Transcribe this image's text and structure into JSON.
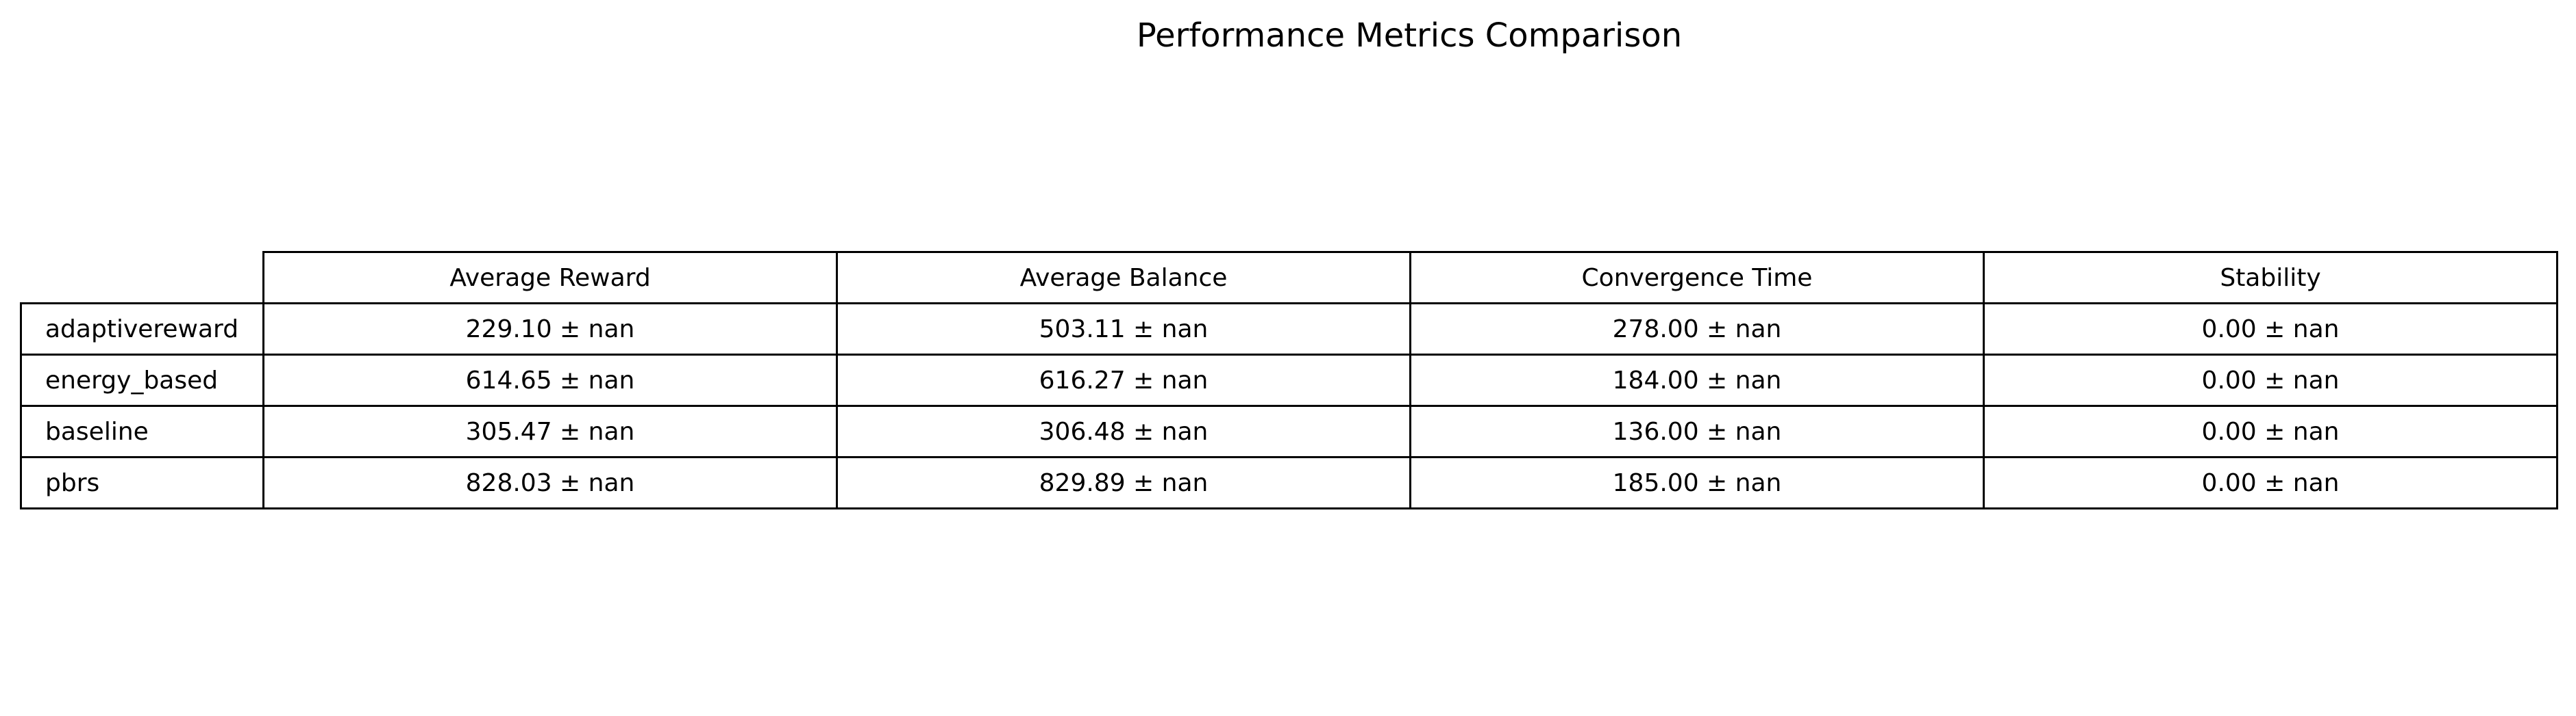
{
  "chart_data": {
    "type": "table",
    "title": "Performance Metrics Comparison",
    "columns": [
      "Average Reward",
      "Average Balance",
      "Convergence Time",
      "Stability"
    ],
    "rows": [
      {
        "label": "adaptivereward",
        "cells": [
          "229.10 ± nan",
          "503.11 ± nan",
          "278.00 ± nan",
          "0.00 ± nan"
        ]
      },
      {
        "label": "energy_based",
        "cells": [
          "614.65 ± nan",
          "616.27 ± nan",
          "184.00 ± nan",
          "0.00 ± nan"
        ]
      },
      {
        "label": "baseline",
        "cells": [
          "305.47 ± nan",
          "306.48 ± nan",
          "136.00 ± nan",
          "0.00 ± nan"
        ]
      },
      {
        "label": "pbrs",
        "cells": [
          "828.03 ± nan",
          "829.89 ± nan",
          "185.00 ± nan",
          "0.00 ± nan"
        ]
      }
    ]
  }
}
